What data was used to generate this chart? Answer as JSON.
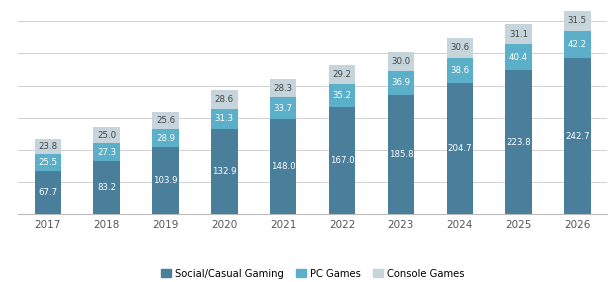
{
  "years": [
    "2017",
    "2018",
    "2019",
    "2020",
    "2021",
    "2022",
    "2023",
    "2024",
    "2025",
    "2026"
  ],
  "social_casual": [
    67.7,
    83.2,
    103.9,
    132.9,
    148.0,
    167.0,
    185.8,
    204.7,
    223.8,
    242.7
  ],
  "pc_games": [
    25.5,
    27.3,
    28.9,
    31.3,
    33.7,
    35.2,
    36.9,
    38.6,
    40.4,
    42.2
  ],
  "console_games": [
    23.8,
    25.0,
    25.6,
    28.6,
    28.3,
    29.2,
    30.0,
    30.6,
    31.1,
    31.5
  ],
  "color_social": "#4a7f9c",
  "color_pc": "#5bafc8",
  "color_console": "#c5d5db",
  "legend_labels": [
    "Social/Casual Gaming",
    "PC Games",
    "Console Games"
  ],
  "bar_width": 0.45,
  "label_fontsize": 6.2,
  "yticks": [
    0,
    50,
    100,
    150,
    200,
    250,
    300
  ]
}
